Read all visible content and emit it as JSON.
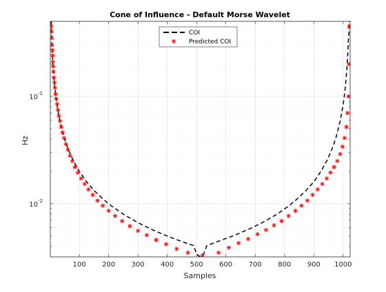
{
  "chart_data": {
    "type": "line",
    "title": "Cone of Influence - Default Morse Wavelet",
    "xlabel": "Samples",
    "ylabel": "Hz",
    "xlim": [
      1,
      1024
    ],
    "ylim": [
      0.0032,
      0.5
    ],
    "yscale": "log",
    "grid": true,
    "minor_grid": true,
    "legend_position": "top-center",
    "x_ticks": [
      100,
      200,
      300,
      400,
      500,
      600,
      700,
      800,
      900,
      1000
    ],
    "y_ticks": [
      0.01,
      0.1
    ],
    "y_tick_labels": [
      {
        "base": "10",
        "exp": "-2"
      },
      {
        "base": "10",
        "exp": "-1"
      }
    ],
    "series": [
      {
        "name": "COI",
        "style": "dashed",
        "color": "#000000",
        "x": [
          4,
          5,
          6,
          8,
          10,
          13,
          16,
          20,
          25,
          30,
          40,
          50,
          65,
          80,
          100,
          125,
          150,
          180,
          210,
          250,
          300,
          350,
          400,
          450,
          490,
          500,
          512,
          524,
          535,
          575,
          625,
          675,
          725,
          775,
          815,
          845,
          875,
          900,
          925,
          945,
          960,
          975,
          990,
          1000,
          1005,
          1010,
          1013,
          1016,
          1018,
          1020,
          1021
        ],
        "y": [
          0.5,
          0.4,
          0.333,
          0.25,
          0.2,
          0.154,
          0.125,
          0.1,
          0.08,
          0.0667,
          0.05,
          0.04,
          0.0308,
          0.025,
          0.02,
          0.016,
          0.0133,
          0.0111,
          0.00952,
          0.008,
          0.00667,
          0.00571,
          0.005,
          0.00444,
          0.00408,
          0.0034,
          0.0032,
          0.0034,
          0.00407,
          0.00448,
          0.00503,
          0.00574,
          0.00669,
          0.00801,
          0.00956,
          0.0112,
          0.0134,
          0.016,
          0.0202,
          0.0253,
          0.0313,
          0.0408,
          0.0588,
          0.0833,
          0.105,
          0.143,
          0.182,
          0.25,
          0.333,
          0.4,
          0.5
        ]
      },
      {
        "name": "Predicted COI",
        "style": "asterisk",
        "color": "#ff0000",
        "x": [
          4,
          5,
          6,
          7,
          8,
          9,
          10,
          11,
          12,
          13,
          15,
          17,
          19,
          21,
          24,
          27,
          30,
          34,
          38,
          43,
          48,
          54,
          61,
          68,
          76,
          85,
          95,
          106,
          118,
          131,
          146,
          162,
          180,
          200,
          222,
          246,
          272,
          300,
          330,
          362,
          396,
          432,
          470,
          520,
          575,
          610,
          643,
          676,
          708,
          737,
          764,
          790,
          814,
          837,
          858,
          878,
          896,
          913,
          929,
          944,
          957,
          969,
          980,
          990,
          998,
          1005,
          1011,
          1015,
          1018,
          1020,
          1021
        ],
        "y": [
          0.45,
          0.4,
          0.35,
          0.3,
          0.27,
          0.24,
          0.21,
          0.19,
          0.17,
          0.15,
          0.135,
          0.12,
          0.105,
          0.095,
          0.085,
          0.075,
          0.066,
          0.059,
          0.052,
          0.046,
          0.041,
          0.036,
          0.032,
          0.028,
          0.025,
          0.022,
          0.0195,
          0.0172,
          0.0153,
          0.0136,
          0.0121,
          0.0107,
          0.0096,
          0.0086,
          0.0077,
          0.0069,
          0.0062,
          0.0056,
          0.0051,
          0.0046,
          0.0042,
          0.0038,
          0.0035,
          0.0033,
          0.0035,
          0.0039,
          0.0043,
          0.0047,
          0.0052,
          0.0057,
          0.0063,
          0.0069,
          0.0077,
          0.0086,
          0.0096,
          0.0107,
          0.0121,
          0.0136,
          0.0153,
          0.0172,
          0.0195,
          0.022,
          0.025,
          0.029,
          0.034,
          0.041,
          0.052,
          0.07,
          0.1,
          0.2,
          0.45
        ]
      }
    ]
  }
}
